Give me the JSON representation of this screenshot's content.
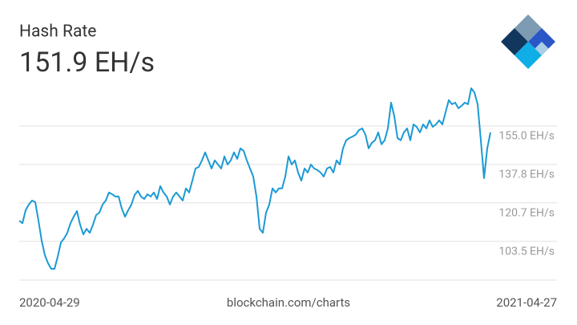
{
  "chart_data": {
    "type": "line",
    "title": "Hash Rate",
    "subtitle": "151.9 EH/s",
    "source": "blockchain.com/charts",
    "x_range_labels": [
      "2020-04-29",
      "2021-04-27"
    ],
    "color": "#1b9ad4",
    "grid": true,
    "ylim": [
      86.2,
      175.4
    ],
    "yticks": [
      {
        "value": 103.5,
        "label": "103.5 EH/s"
      },
      {
        "value": 120.7,
        "label": "120.7 EH/s"
      },
      {
        "value": 137.8,
        "label": "137.8 EH/s"
      },
      {
        "value": 155.0,
        "label": "155.0 EH/s"
      }
    ],
    "values": [
      112.7,
      111.6,
      117.4,
      119.9,
      121.7,
      121.0,
      112.7,
      103.8,
      97.3,
      93.7,
      91.2,
      91.2,
      96.6,
      103.0,
      104.8,
      107.3,
      111.6,
      114.5,
      117.0,
      110.9,
      106.6,
      109.1,
      107.3,
      110.9,
      115.2,
      116.3,
      119.9,
      121.7,
      125.3,
      124.5,
      123.5,
      123.5,
      118.1,
      114.5,
      117.4,
      119.9,
      124.2,
      126.0,
      123.5,
      122.4,
      124.5,
      123.5,
      125.3,
      122.4,
      128.1,
      125.3,
      123.5,
      119.9,
      123.5,
      125.3,
      123.5,
      121.7,
      127.1,
      125.3,
      130.6,
      136.0,
      136.7,
      139.6,
      143.2,
      139.6,
      136.0,
      139.6,
      137.8,
      136.0,
      141.4,
      137.8,
      139.6,
      143.2,
      140.3,
      145.0,
      143.9,
      139.6,
      136.0,
      132.4,
      123.5,
      109.1,
      107.3,
      116.3,
      119.9,
      127.1,
      125.3,
      127.1,
      127.1,
      132.4,
      141.4,
      137.8,
      139.6,
      134.2,
      130.6,
      136.0,
      134.2,
      137.8,
      136.0,
      135.3,
      134.2,
      132.4,
      136.0,
      136.7,
      134.2,
      139.6,
      137.8,
      145.0,
      148.6,
      149.6,
      150.3,
      151.1,
      153.2,
      153.9,
      151.1,
      145.0,
      147.5,
      148.6,
      152.1,
      146.8,
      148.6,
      153.9,
      165.4,
      159.3,
      149.6,
      148.6,
      152.1,
      153.9,
      148.6,
      155.7,
      154.6,
      152.1,
      155.7,
      153.9,
      157.5,
      154.6,
      155.7,
      157.5,
      155.7,
      161.1,
      166.5,
      164.7,
      165.4,
      162.9,
      164.0,
      165.4,
      164.7,
      171.8,
      170.0,
      164.7,
      148.6,
      131.7,
      145.0,
      152.1
    ]
  }
}
